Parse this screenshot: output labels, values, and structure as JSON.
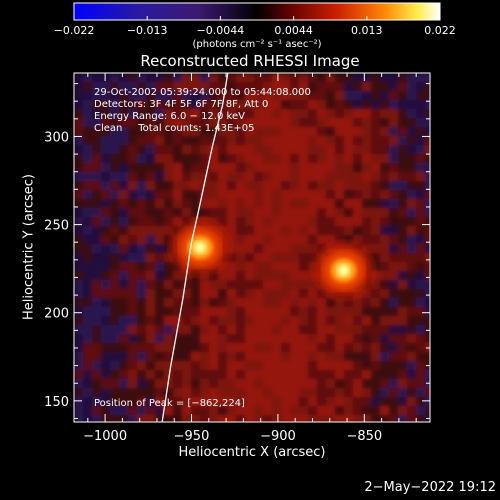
{
  "colorbar": {
    "min": -0.022,
    "max": 0.022,
    "tick_labels": [
      "−0.022",
      "−0.013",
      "−0.0044",
      "0.0044",
      "0.013",
      "0.022"
    ],
    "unit_label": "(photons cm⁻² s⁻¹ asec⁻²)",
    "colormap": [
      "#0000ff",
      "#3a1a8a",
      "#3c1a6a",
      "#000000",
      "#6a0000",
      "#cc2200",
      "#ff7a00",
      "#ffff50",
      "#ffffff"
    ]
  },
  "chart_data": {
    "type": "heatmap",
    "title": "Reconstructed RHESSI Image",
    "xlabel": "Heliocentric X (arcsec)",
    "ylabel": "Heliocentric Y (arcsec)",
    "xlim": [
      -1018,
      -812
    ],
    "ylim": [
      138,
      336
    ],
    "x_ticks": [
      -1000,
      -950,
      -900,
      -850
    ],
    "x_tick_labels": [
      "−1000",
      "−950",
      "−900",
      "−850"
    ],
    "y_ticks": [
      150,
      200,
      250,
      300
    ],
    "y_tick_labels": [
      "150",
      "200",
      "250",
      "300"
    ],
    "sources": [
      {
        "x": -945,
        "y": 237
      },
      {
        "x": -862,
        "y": 224
      }
    ],
    "limb_curve": [
      [
        -929,
        336
      ],
      [
        -932,
        318
      ],
      [
        -938,
        294
      ],
      [
        -945,
        262
      ],
      [
        -950,
        240
      ],
      [
        -955,
        208
      ],
      [
        -962,
        170
      ],
      [
        -967,
        138
      ]
    ],
    "info_lines": [
      "29-Oct-2002 05:39:24.000 to 05:44:08.000",
      "Detectors: 3F 4F 5F 6F 7F 8F, Att 0",
      "Energy Range: 6.0 − 12.0 keV",
      "Clean     Total counts: 1.43E+05"
    ],
    "peak_label": "Position of Peak = [−862,224]"
  },
  "footer": {
    "timestamp": "2−May−2022 19:12"
  }
}
